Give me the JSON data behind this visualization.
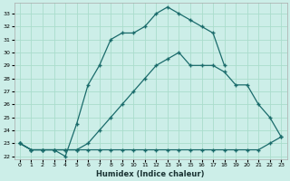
{
  "xlabel": "Humidex (Indice chaleur)",
  "bg_color": "#cceee8",
  "grid_color": "#aaddcc",
  "line_color": "#1a6b6b",
  "xlim": [
    -0.5,
    23.5
  ],
  "ylim": [
    21.8,
    33.8
  ],
  "xticks": [
    0,
    1,
    2,
    3,
    4,
    5,
    6,
    7,
    8,
    9,
    10,
    11,
    12,
    13,
    14,
    15,
    16,
    17,
    18,
    19,
    20,
    21,
    22,
    23
  ],
  "yticks": [
    22,
    23,
    24,
    25,
    26,
    27,
    28,
    29,
    30,
    31,
    32,
    33
  ],
  "line1_x": [
    0,
    1,
    2,
    3,
    4,
    5,
    6,
    7,
    8,
    9,
    10,
    11,
    12,
    13,
    14,
    15,
    16,
    17,
    18,
    19,
    20,
    21,
    22,
    23
  ],
  "line1_y": [
    23,
    22.5,
    22.5,
    22.5,
    22.5,
    22.5,
    22.5,
    22.5,
    22.5,
    22.5,
    22.5,
    22.5,
    22.5,
    22.5,
    22.5,
    22.5,
    22.5,
    22.5,
    22.5,
    22.5,
    22.5,
    22.5,
    23.0,
    23.5
  ],
  "line2_x": [
    0,
    1,
    2,
    3,
    4,
    5,
    6,
    7,
    8,
    9,
    10,
    11,
    12,
    13,
    14,
    15,
    16,
    17,
    18,
    19,
    20,
    21,
    22,
    23
  ],
  "line2_y": [
    23,
    22.5,
    22.5,
    22.5,
    22.5,
    22.5,
    23.0,
    24.0,
    25.0,
    26.0,
    27.0,
    28.0,
    29.0,
    29.5,
    30.0,
    29.0,
    29.0,
    29.0,
    28.5,
    27.5,
    27.5,
    26.0,
    25.0,
    23.5
  ],
  "line3_x": [
    0,
    1,
    2,
    3,
    4,
    5,
    6,
    7,
    8,
    9,
    10,
    11,
    12,
    13,
    14,
    15,
    16,
    17,
    18
  ],
  "line3_y": [
    23,
    22.5,
    22.5,
    22.5,
    22.0,
    24.5,
    27.5,
    29.0,
    31.0,
    31.5,
    31.5,
    32.0,
    33.0,
    33.5,
    33.0,
    32.5,
    32.0,
    31.5,
    29.0
  ]
}
